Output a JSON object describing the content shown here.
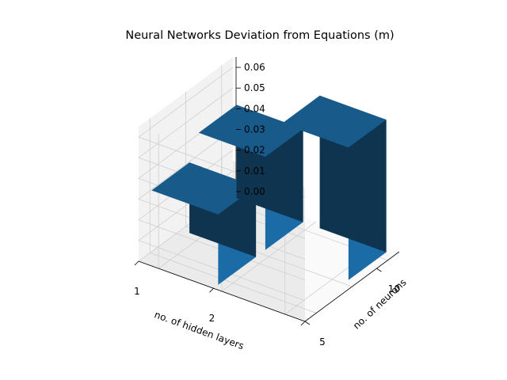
{
  "chart_data": {
    "type": "bar3d",
    "title": "Neural Networks Deviation from Equations (m)",
    "xlabel": "no. of hidden layers",
    "ylabel": "no. of neurons",
    "zlabel": "",
    "x_ticks": [
      "1",
      "2"
    ],
    "y_ticks": [
      "10",
      "5"
    ],
    "z_ticks": [
      "0.00",
      "0.01",
      "0.02",
      "0.03",
      "0.04",
      "0.05",
      "0.06"
    ],
    "zlim": [
      0,
      0.065
    ],
    "bars": [
      {
        "hidden_layers": 1,
        "neurons": 10,
        "value": 0.045
      },
      {
        "hidden_layers": 1,
        "neurons": 5,
        "value": 0.034
      },
      {
        "hidden_layers": 2,
        "neurons": 10,
        "value": 0.064
      },
      {
        "hidden_layers": 2,
        "neurons": 5,
        "value": 0.0
      }
    ],
    "grid": true,
    "legend": "none",
    "colors": {
      "top": "#185a89",
      "front": "#1b6ba6",
      "side": "#0e3450",
      "pane_back": "#f2f2f2",
      "pane_side": "#ebebeb",
      "pane_floor": "#fafafa",
      "grid": "#cfcfcf"
    }
  }
}
